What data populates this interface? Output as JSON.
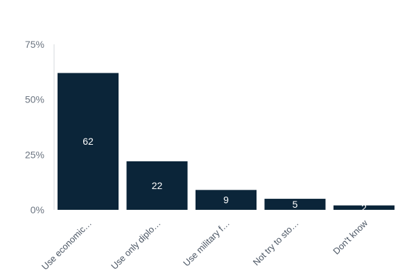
{
  "chart_data": {
    "type": "bar",
    "categories": [
      "Use economic…",
      "Use only diplo…",
      "Use military f…",
      "Not try to sto…",
      "Don't know"
    ],
    "values": [
      62,
      22,
      9,
      5,
      2
    ],
    "data_labels": [
      "62",
      "22",
      "9",
      "5",
      "2"
    ],
    "y_ticks": [
      0,
      25,
      50,
      75
    ],
    "y_tick_labels": [
      "0%",
      "25%",
      "50%",
      "75%"
    ],
    "ylim": [
      0,
      75
    ],
    "grid": false,
    "legend": "none",
    "bar_color": "#0b2539",
    "label_color": "#ffffff"
  }
}
